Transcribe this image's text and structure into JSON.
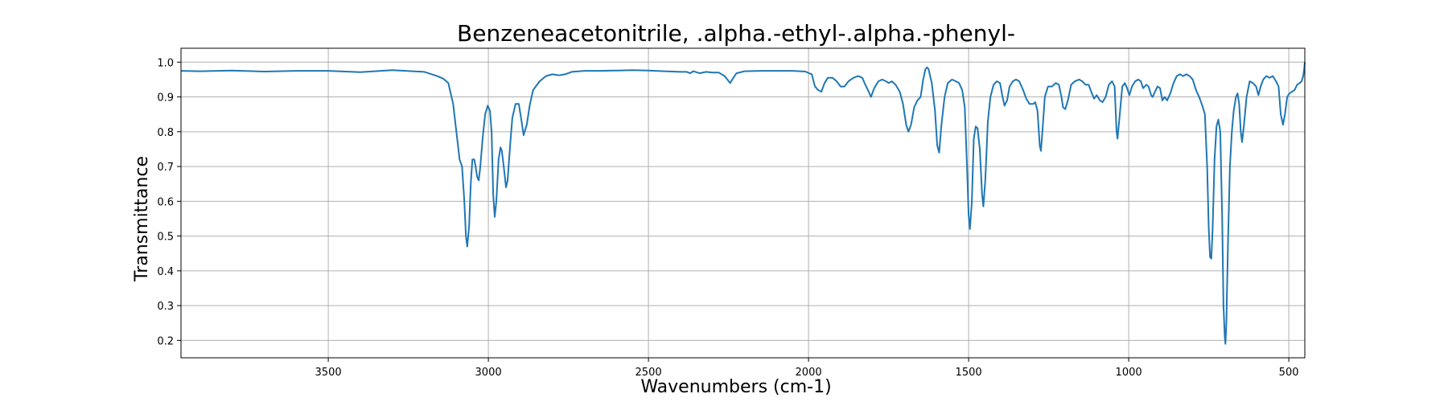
{
  "chart_data": {
    "type": "line",
    "title": "Benzeneacetonitrile, .alpha.-ethyl-.alpha.-phenyl-",
    "xlabel": "Wavenumbers (cm-1)",
    "ylabel": "Transmittance",
    "xlim": [
      3960,
      450
    ],
    "ylim": [
      0.15,
      1.04
    ],
    "x_reversed": true,
    "grid": true,
    "xticks": [
      3500,
      3000,
      2500,
      2000,
      1500,
      1000,
      500
    ],
    "xtick_labels": [
      "3500",
      "3000",
      "2500",
      "2000",
      "1500",
      "1000",
      "500"
    ],
    "yticks": [
      0.2,
      0.3,
      0.4,
      0.5,
      0.6,
      0.7,
      0.8,
      0.9,
      1.0
    ],
    "ytick_labels": [
      "0.2",
      "0.3",
      "0.4",
      "0.5",
      "0.6",
      "0.7",
      "0.8",
      "0.9",
      "1.0"
    ],
    "series": [
      {
        "color": "#1f77b4",
        "points": [
          [
            3960,
            0.975
          ],
          [
            3900,
            0.974
          ],
          [
            3800,
            0.976
          ],
          [
            3700,
            0.973
          ],
          [
            3600,
            0.975
          ],
          [
            3500,
            0.975
          ],
          [
            3400,
            0.971
          ],
          [
            3300,
            0.977
          ],
          [
            3200,
            0.972
          ],
          [
            3160,
            0.96
          ],
          [
            3140,
            0.952
          ],
          [
            3125,
            0.94
          ],
          [
            3110,
            0.88
          ],
          [
            3100,
            0.8
          ],
          [
            3090,
            0.72
          ],
          [
            3082,
            0.7
          ],
          [
            3075,
            0.6
          ],
          [
            3070,
            0.5
          ],
          [
            3066,
            0.47
          ],
          [
            3060,
            0.53
          ],
          [
            3055,
            0.65
          ],
          [
            3050,
            0.72
          ],
          [
            3044,
            0.72
          ],
          [
            3040,
            0.7
          ],
          [
            3035,
            0.67
          ],
          [
            3030,
            0.66
          ],
          [
            3025,
            0.7
          ],
          [
            3018,
            0.78
          ],
          [
            3010,
            0.85
          ],
          [
            3002,
            0.875
          ],
          [
            2995,
            0.86
          ],
          [
            2990,
            0.8
          ],
          [
            2985,
            0.62
          ],
          [
            2980,
            0.555
          ],
          [
            2975,
            0.6
          ],
          [
            2968,
            0.72
          ],
          [
            2962,
            0.755
          ],
          [
            2958,
            0.745
          ],
          [
            2952,
            0.7
          ],
          [
            2945,
            0.64
          ],
          [
            2940,
            0.66
          ],
          [
            2932,
            0.76
          ],
          [
            2925,
            0.84
          ],
          [
            2915,
            0.88
          ],
          [
            2905,
            0.88
          ],
          [
            2898,
            0.84
          ],
          [
            2890,
            0.79
          ],
          [
            2880,
            0.82
          ],
          [
            2870,
            0.88
          ],
          [
            2860,
            0.92
          ],
          [
            2840,
            0.945
          ],
          [
            2820,
            0.96
          ],
          [
            2800,
            0.965
          ],
          [
            2780,
            0.962
          ],
          [
            2760,
            0.965
          ],
          [
            2740,
            0.972
          ],
          [
            2700,
            0.975
          ],
          [
            2650,
            0.975
          ],
          [
            2600,
            0.976
          ],
          [
            2550,
            0.977
          ],
          [
            2500,
            0.976
          ],
          [
            2450,
            0.974
          ],
          [
            2400,
            0.972
          ],
          [
            2380,
            0.972
          ],
          [
            2370,
            0.968
          ],
          [
            2360,
            0.974
          ],
          [
            2340,
            0.968
          ],
          [
            2320,
            0.972
          ],
          [
            2300,
            0.97
          ],
          [
            2280,
            0.97
          ],
          [
            2262,
            0.96
          ],
          [
            2245,
            0.94
          ],
          [
            2235,
            0.955
          ],
          [
            2225,
            0.968
          ],
          [
            2200,
            0.974
          ],
          [
            2150,
            0.975
          ],
          [
            2100,
            0.975
          ],
          [
            2050,
            0.975
          ],
          [
            2010,
            0.973
          ],
          [
            1990,
            0.965
          ],
          [
            1980,
            0.93
          ],
          [
            1970,
            0.92
          ],
          [
            1960,
            0.915
          ],
          [
            1950,
            0.94
          ],
          [
            1940,
            0.955
          ],
          [
            1925,
            0.955
          ],
          [
            1912,
            0.945
          ],
          [
            1900,
            0.93
          ],
          [
            1888,
            0.93
          ],
          [
            1875,
            0.945
          ],
          [
            1860,
            0.955
          ],
          [
            1845,
            0.96
          ],
          [
            1832,
            0.955
          ],
          [
            1825,
            0.94
          ],
          [
            1812,
            0.915
          ],
          [
            1805,
            0.9
          ],
          [
            1795,
            0.925
          ],
          [
            1782,
            0.945
          ],
          [
            1770,
            0.95
          ],
          [
            1758,
            0.945
          ],
          [
            1750,
            0.94
          ],
          [
            1740,
            0.945
          ],
          [
            1728,
            0.935
          ],
          [
            1715,
            0.915
          ],
          [
            1705,
            0.88
          ],
          [
            1695,
            0.82
          ],
          [
            1688,
            0.8
          ],
          [
            1680,
            0.82
          ],
          [
            1670,
            0.87
          ],
          [
            1660,
            0.89
          ],
          [
            1650,
            0.9
          ],
          [
            1642,
            0.95
          ],
          [
            1635,
            0.98
          ],
          [
            1630,
            0.985
          ],
          [
            1625,
            0.98
          ],
          [
            1615,
            0.94
          ],
          [
            1605,
            0.86
          ],
          [
            1598,
            0.76
          ],
          [
            1592,
            0.74
          ],
          [
            1585,
            0.82
          ],
          [
            1575,
            0.9
          ],
          [
            1565,
            0.94
          ],
          [
            1552,
            0.95
          ],
          [
            1540,
            0.945
          ],
          [
            1530,
            0.94
          ],
          [
            1520,
            0.92
          ],
          [
            1512,
            0.87
          ],
          [
            1505,
            0.7
          ],
          [
            1500,
            0.56
          ],
          [
            1496,
            0.52
          ],
          [
            1490,
            0.6
          ],
          [
            1484,
            0.78
          ],
          [
            1478,
            0.815
          ],
          [
            1472,
            0.81
          ],
          [
            1465,
            0.75
          ],
          [
            1458,
            0.62
          ],
          [
            1454,
            0.585
          ],
          [
            1448,
            0.66
          ],
          [
            1440,
            0.83
          ],
          [
            1432,
            0.9
          ],
          [
            1422,
            0.935
          ],
          [
            1412,
            0.945
          ],
          [
            1402,
            0.94
          ],
          [
            1394,
            0.9
          ],
          [
            1388,
            0.875
          ],
          [
            1380,
            0.89
          ],
          [
            1372,
            0.93
          ],
          [
            1362,
            0.945
          ],
          [
            1352,
            0.95
          ],
          [
            1342,
            0.945
          ],
          [
            1330,
            0.92
          ],
          [
            1320,
            0.895
          ],
          [
            1310,
            0.88
          ],
          [
            1298,
            0.88
          ],
          [
            1292,
            0.885
          ],
          [
            1285,
            0.86
          ],
          [
            1278,
            0.76
          ],
          [
            1274,
            0.745
          ],
          [
            1268,
            0.82
          ],
          [
            1262,
            0.9
          ],
          [
            1252,
            0.93
          ],
          [
            1240,
            0.93
          ],
          [
            1228,
            0.94
          ],
          [
            1218,
            0.935
          ],
          [
            1210,
            0.9
          ],
          [
            1205,
            0.87
          ],
          [
            1198,
            0.865
          ],
          [
            1190,
            0.89
          ],
          [
            1180,
            0.935
          ],
          [
            1168,
            0.945
          ],
          [
            1155,
            0.95
          ],
          [
            1145,
            0.945
          ],
          [
            1135,
            0.935
          ],
          [
            1125,
            0.935
          ],
          [
            1115,
            0.91
          ],
          [
            1108,
            0.895
          ],
          [
            1100,
            0.905
          ],
          [
            1090,
            0.89
          ],
          [
            1082,
            0.885
          ],
          [
            1072,
            0.9
          ],
          [
            1062,
            0.935
          ],
          [
            1052,
            0.945
          ],
          [
            1044,
            0.93
          ],
          [
            1038,
            0.8
          ],
          [
            1035,
            0.78
          ],
          [
            1028,
            0.85
          ],
          [
            1020,
            0.93
          ],
          [
            1012,
            0.94
          ],
          [
            1005,
            0.925
          ],
          [
            998,
            0.905
          ],
          [
            990,
            0.93
          ],
          [
            980,
            0.945
          ],
          [
            970,
            0.95
          ],
          [
            962,
            0.945
          ],
          [
            955,
            0.925
          ],
          [
            945,
            0.935
          ],
          [
            938,
            0.93
          ],
          [
            930,
            0.905
          ],
          [
            925,
            0.9
          ],
          [
            918,
            0.915
          ],
          [
            910,
            0.93
          ],
          [
            902,
            0.925
          ],
          [
            895,
            0.89
          ],
          [
            888,
            0.9
          ],
          [
            880,
            0.89
          ],
          [
            870,
            0.91
          ],
          [
            860,
            0.94
          ],
          [
            850,
            0.96
          ],
          [
            840,
            0.965
          ],
          [
            830,
            0.96
          ],
          [
            820,
            0.965
          ],
          [
            810,
            0.96
          ],
          [
            800,
            0.95
          ],
          [
            790,
            0.92
          ],
          [
            780,
            0.9
          ],
          [
            770,
            0.875
          ],
          [
            762,
            0.85
          ],
          [
            755,
            0.7
          ],
          [
            750,
            0.52
          ],
          [
            746,
            0.44
          ],
          [
            742,
            0.435
          ],
          [
            738,
            0.52
          ],
          [
            732,
            0.72
          ],
          [
            726,
            0.815
          ],
          [
            720,
            0.835
          ],
          [
            714,
            0.8
          ],
          [
            708,
            0.55
          ],
          [
            704,
            0.3
          ],
          [
            700,
            0.21
          ],
          [
            698,
            0.19
          ],
          [
            695,
            0.25
          ],
          [
            690,
            0.48
          ],
          [
            684,
            0.7
          ],
          [
            678,
            0.8
          ],
          [
            672,
            0.86
          ],
          [
            665,
            0.9
          ],
          [
            660,
            0.91
          ],
          [
            655,
            0.88
          ],
          [
            650,
            0.8
          ],
          [
            646,
            0.77
          ],
          [
            640,
            0.82
          ],
          [
            632,
            0.9
          ],
          [
            622,
            0.945
          ],
          [
            612,
            0.94
          ],
          [
            602,
            0.93
          ],
          [
            595,
            0.905
          ],
          [
            588,
            0.93
          ],
          [
            580,
            0.95
          ],
          [
            570,
            0.96
          ],
          [
            560,
            0.955
          ],
          [
            550,
            0.96
          ],
          [
            540,
            0.945
          ],
          [
            532,
            0.93
          ],
          [
            525,
            0.85
          ],
          [
            518,
            0.82
          ],
          [
            512,
            0.85
          ],
          [
            505,
            0.9
          ],
          [
            498,
            0.91
          ],
          [
            490,
            0.915
          ],
          [
            482,
            0.92
          ],
          [
            474,
            0.935
          ],
          [
            466,
            0.94
          ],
          [
            460,
            0.945
          ],
          [
            455,
            0.96
          ],
          [
            452,
            0.98
          ],
          [
            450,
            1.0
          ]
        ]
      }
    ]
  }
}
